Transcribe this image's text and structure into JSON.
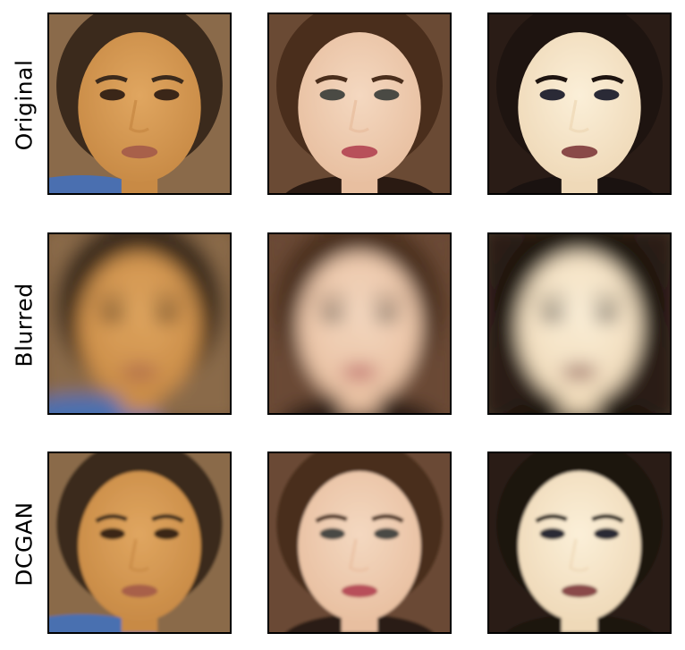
{
  "rows": [
    {
      "label": "Original"
    },
    {
      "label": "Blurred"
    },
    {
      "label": "DCGAN"
    }
  ],
  "faces": [
    {
      "skin": "#c88a45",
      "skin_light": "#e0a660",
      "hair": "#3b2a1c",
      "bg": "#8a6a4a",
      "lips": "#a8604a",
      "eyes": "#3a2618",
      "cloth": "#4a6fb0"
    },
    {
      "skin": "#e8bfa0",
      "skin_light": "#f4d8c0",
      "hair": "#4a2e1c",
      "bg": "#6a4a34",
      "lips": "#b8505a",
      "eyes": "#4a4a44",
      "cloth": "#2a1a12"
    },
    {
      "skin": "#efd9b8",
      "skin_light": "#fbefd8",
      "hair": "#1e1410",
      "bg": "#2a1c16",
      "lips": "#8a4a48",
      "eyes": "#2a2a36",
      "cloth": "#1a1210"
    }
  ]
}
